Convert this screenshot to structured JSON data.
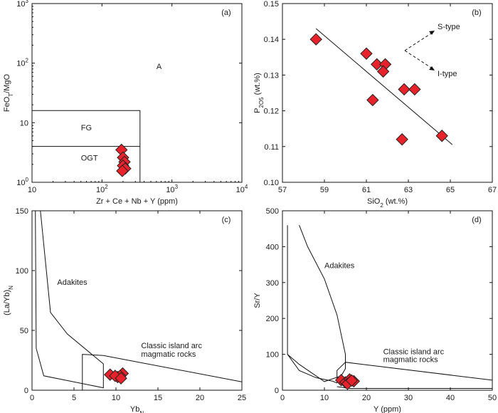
{
  "chart_data": [
    {
      "type": "scatter",
      "panel": "(a)",
      "xlabel": "Zr + Ce + Nb + Y (ppm)",
      "ylabel": "FeO_T/MgO",
      "x_scale": "log",
      "y_scale": "log",
      "xlim": [
        10,
        10000
      ],
      "ylim": [
        1,
        1000
      ],
      "x_ticks": [
        {
          "v": 10,
          "b": "10",
          "e": ""
        },
        {
          "v": 100,
          "b": "10",
          "e": "2"
        },
        {
          "v": 1000,
          "b": "10",
          "e": "3"
        },
        {
          "v": 10000,
          "b": "10",
          "e": "4"
        }
      ],
      "y_ticks": [
        {
          "v": 1,
          "b": "10",
          "e": "0"
        },
        {
          "v": 10,
          "b": "10",
          "e": ""
        },
        {
          "v": 100,
          "b": "10",
          "e": "2"
        },
        {
          "v": 1000,
          "b": "10",
          "e": "3"
        }
      ],
      "regions": [
        {
          "label": "A",
          "x": 600,
          "y": 80
        },
        {
          "label": "FG",
          "x": 50,
          "y": 7.5
        },
        {
          "label": "OGT",
          "x": 50,
          "y": 2.3
        }
      ],
      "field_lines": [
        [
          [
            10,
            16
          ],
          [
            350,
            16
          ],
          [
            350,
            1
          ]
        ],
        [
          [
            10,
            4
          ],
          [
            350,
            4
          ]
        ]
      ],
      "points": [
        {
          "x": 190,
          "y": 3.5
        },
        {
          "x": 200,
          "y": 2.6
        },
        {
          "x": 210,
          "y": 2.2
        },
        {
          "x": 200,
          "y": 1.9
        },
        {
          "x": 215,
          "y": 1.7
        },
        {
          "x": 195,
          "y": 1.55
        }
      ]
    },
    {
      "type": "scatter",
      "panel": "(b)",
      "xlabel": "SiO_2 (wt.%)",
      "ylabel": "P_2O_5 (wt.%)",
      "xlim": [
        57,
        67
      ],
      "ylim": [
        0.1,
        0.15
      ],
      "x_ticks": [
        57,
        59,
        61,
        63,
        65,
        67
      ],
      "y_ticks": [
        0.1,
        0.11,
        0.12,
        0.13,
        0.14,
        0.15
      ],
      "trend_line": [
        [
          58.6,
          0.143
        ],
        [
          65.1,
          0.1105
        ]
      ],
      "arrow_labels": [
        "S-type",
        "I-type"
      ],
      "points": [
        {
          "x": 58.6,
          "y": 0.14
        },
        {
          "x": 61.0,
          "y": 0.136
        },
        {
          "x": 61.5,
          "y": 0.133
        },
        {
          "x": 61.9,
          "y": 0.133
        },
        {
          "x": 61.8,
          "y": 0.131
        },
        {
          "x": 61.3,
          "y": 0.123
        },
        {
          "x": 62.8,
          "y": 0.126
        },
        {
          "x": 63.3,
          "y": 0.126
        },
        {
          "x": 62.7,
          "y": 0.112
        },
        {
          "x": 64.6,
          "y": 0.113
        }
      ]
    },
    {
      "type": "scatter",
      "panel": "(c)",
      "xlabel": "Yb_N",
      "ylabel": "(La/Yb)_N",
      "xlim": [
        0,
        25
      ],
      "ylim": [
        0,
        150
      ],
      "x_ticks": [
        0,
        5,
        10,
        15,
        20,
        25
      ],
      "y_ticks": [
        0,
        50,
        100,
        150
      ],
      "regions": [
        {
          "label": "Adakites",
          "x": 3.0,
          "y": 88
        },
        {
          "label": "Classic island arc",
          "x": 13,
          "y": 35
        },
        {
          "label": "magmatic rocks",
          "x": 13,
          "y": 28
        }
      ],
      "field_lines": [
        [
          [
            0.4,
            150
          ],
          [
            0.5,
            35
          ],
          [
            1.4,
            12
          ],
          [
            8.5,
            2
          ],
          [
            8.5,
            22
          ],
          [
            4.2,
            47
          ],
          [
            2.2,
            65
          ],
          [
            1.0,
            150
          ]
        ],
        [
          [
            8.5,
            29
          ],
          [
            25,
            7
          ]
        ],
        [
          [
            6,
            0
          ],
          [
            6,
            30
          ],
          [
            8.5,
            29
          ]
        ]
      ],
      "points": [
        {
          "x": 9.3,
          "y": 13
        },
        {
          "x": 10.2,
          "y": 11
        },
        {
          "x": 10.8,
          "y": 14
        },
        {
          "x": 10.5,
          "y": 12
        },
        {
          "x": 9.9,
          "y": 12
        },
        {
          "x": 10.6,
          "y": 10
        }
      ]
    },
    {
      "type": "scatter",
      "panel": "(d)",
      "xlabel": "Y (ppm)",
      "ylabel": "Sr/Y",
      "xlim": [
        0,
        50
      ],
      "ylim": [
        0,
        500
      ],
      "x_ticks": [
        0,
        10,
        20,
        30,
        40,
        50
      ],
      "y_ticks": [
        0,
        100,
        200,
        300,
        400,
        500
      ],
      "regions": [
        {
          "label": "Adakites",
          "x": 10,
          "y": 340
        },
        {
          "label": "Classic island arc",
          "x": 24,
          "y": 100
        },
        {
          "label": "magmatic rocks",
          "x": 24,
          "y": 78
        }
      ],
      "field_lines": [
        [
          [
            1.2,
            460
          ],
          [
            1.2,
            100
          ],
          [
            4,
            72
          ],
          [
            10,
            24
          ],
          [
            14,
            40
          ],
          [
            15,
            60
          ],
          [
            15,
            100
          ],
          [
            13,
            210
          ],
          [
            10,
            310
          ],
          [
            6,
            400
          ],
          [
            4,
            460
          ]
        ],
        [
          [
            13,
            20
          ],
          [
            13,
            55
          ],
          [
            15,
            78
          ],
          [
            50,
            28
          ],
          [
            50,
            5
          ],
          [
            16,
            5
          ],
          [
            13,
            10
          ]
        ],
        [
          [
            1.2,
            100
          ],
          [
            4,
            55
          ],
          [
            8,
            35
          ],
          [
            12,
            25
          ],
          [
            13,
            20
          ]
        ]
      ],
      "points": [
        {
          "x": 14,
          "y": 28
        },
        {
          "x": 15,
          "y": 22
        },
        {
          "x": 16,
          "y": 30
        },
        {
          "x": 15.5,
          "y": 18
        },
        {
          "x": 17,
          "y": 25
        },
        {
          "x": 16.5,
          "y": 27
        }
      ]
    }
  ]
}
